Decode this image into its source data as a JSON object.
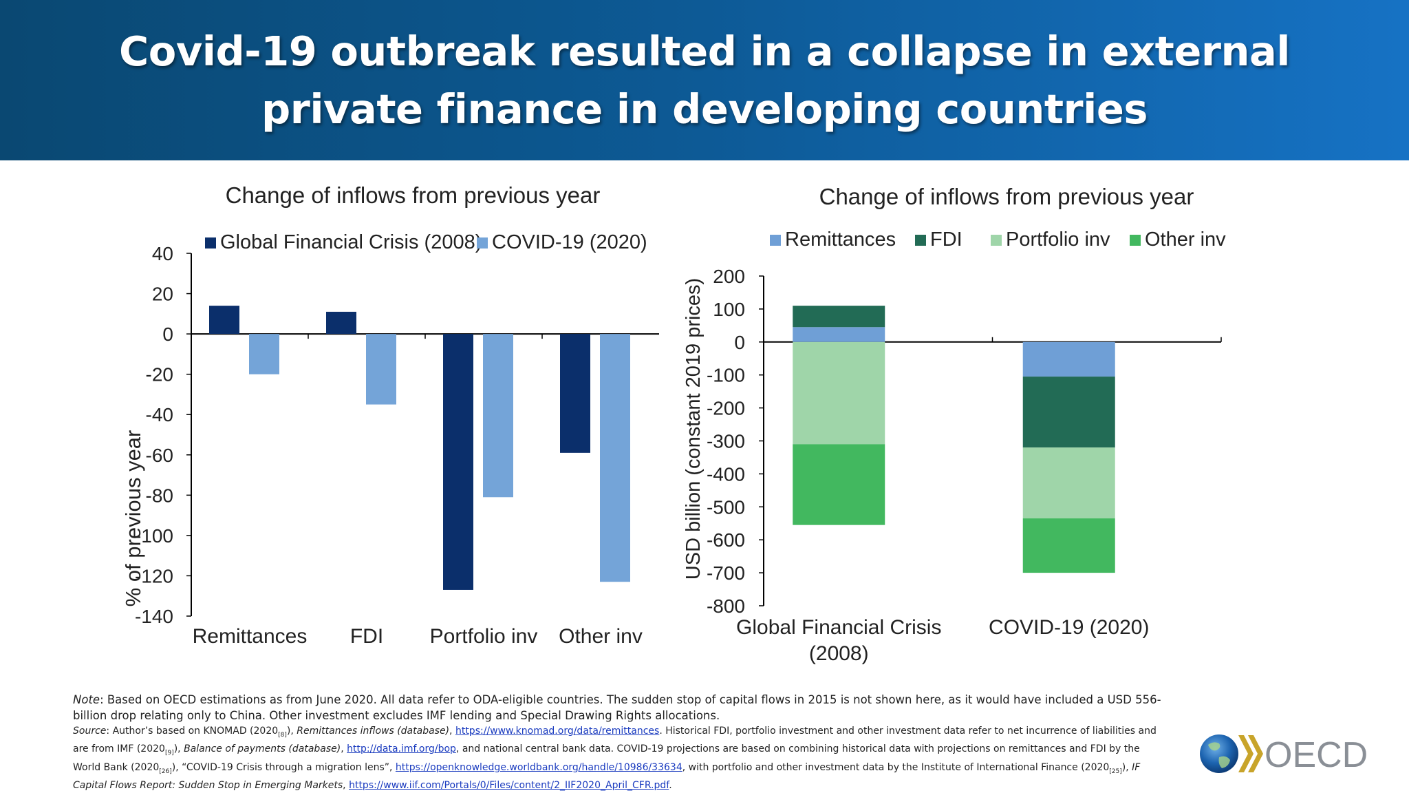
{
  "header": {
    "title_line1": "Covid-19 outbreak resulted in a collapse in external",
    "title_line2": "private finance in developing countries",
    "background_colors": [
      "#0a4872",
      "#1672c4"
    ]
  },
  "chart_data": [
    {
      "type": "bar",
      "title": "Change of inflows from previous year",
      "ylabel": "% of previous year",
      "xlabel": "",
      "ylim": [
        -140,
        40
      ],
      "yticks": [
        40,
        20,
        0,
        -20,
        -40,
        -60,
        -80,
        -100,
        -120,
        -140
      ],
      "categories": [
        "Remittances",
        "FDI",
        "Portfolio inv",
        "Other inv"
      ],
      "series": [
        {
          "name": "Global Financial Crisis (2008)",
          "color": "#0b2f6b",
          "values": [
            14,
            11,
            -127,
            -59
          ]
        },
        {
          "name": "COVID-19 (2020)",
          "color": "#74a4d8",
          "values": [
            -20,
            -35,
            -81,
            -123
          ]
        }
      ],
      "legend": "top",
      "grid": false
    },
    {
      "type": "bar",
      "stacked": true,
      "title": "Change of inflows from previous year",
      "ylabel": "USD billion (constant 2019 prices)",
      "xlabel": "",
      "ylim": [
        -800,
        200
      ],
      "yticks": [
        200,
        100,
        0,
        -100,
        -200,
        -300,
        -400,
        -500,
        -600,
        -700,
        -800
      ],
      "categories": [
        [
          "Global Financial Crisis",
          "(2008)"
        ],
        [
          "COVID-19 (2020)"
        ]
      ],
      "series": [
        {
          "name": "Remittances",
          "color": "#6f9fd6",
          "values": [
            45,
            -105
          ]
        },
        {
          "name": "FDI",
          "color": "#226b55",
          "values": [
            65,
            -215
          ]
        },
        {
          "name": "Portfolio inv",
          "color": "#9fd5a9",
          "values": [
            -310,
            -215
          ]
        },
        {
          "name": "Other inv",
          "color": "#42b85f",
          "values": [
            -245,
            -165
          ]
        }
      ],
      "legend": "top",
      "grid": false
    }
  ],
  "footer": {
    "note_label": "Note",
    "note_text": ": Based on OECD  estimations as from June 2020.  All data refer to ODA-eligible countries. The sudden stop of capital flows in 2015 is not shown here, as it would have included a USD 556-billion drop relating only to China. Other investment excludes IMF lending and Special Drawing Rights allocations.",
    "source_label": "Source",
    "source_1": ": Author’s based on KNOMAD (2020",
    "ref_8": "[8]",
    "source_2": "), ",
    "source_3_italic": "Remittances inflows (database)",
    "source_4": ", ",
    "link_knomad": "https://www.knomad.org/data/remittances",
    "source_5": ". Historical FDI, portfolio investment and other investment data refer to net incurrence of liabilities and are from IMF (2020",
    "ref_9": "[9]",
    "source_6": "), ",
    "source_7_italic": "Balance of payments (database)",
    "source_8": ", ",
    "link_imf": "http://data.imf.org/bop",
    "source_9": ", and national central bank data. COVID-19 projections are based on combining historical data with projections on remittances and FDI by the World Bank (2020",
    "ref_26": "[26]",
    "source_10": "), “COVID-19 Crisis through a migration lens”, ",
    "link_wb": "https://openknowledge.worldbank.org/handle/10986/33634",
    "source_11": ", with portfolio and other investment data by the Institute of International Finance (2020",
    "ref_25": "[25]",
    "source_12": "), ",
    "source_13_italic": "IF Capital Flows Report: Sudden Stop in Emerging Markets",
    "source_14": ", ",
    "link_iif": "https://www.iif.com/Portals/0/Files/content/2_IIF2020_April_CFR.pdf",
    "source_15": "."
  },
  "logo": {
    "text": "OECD",
    "icon": "globe-icon"
  }
}
